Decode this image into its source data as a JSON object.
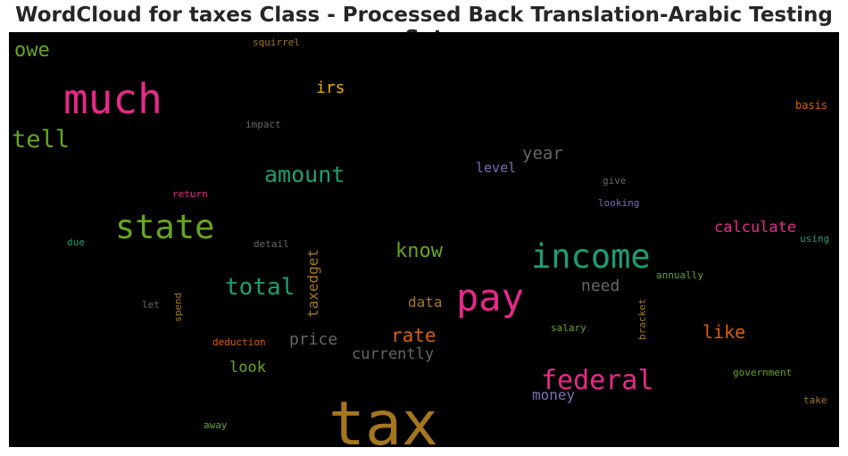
{
  "chart_data": {
    "type": "wordcloud",
    "title": "WordCloud for taxes Class - Processed Back Translation-Arabic Testing Set",
    "background": "#000000",
    "words": [
      {
        "text": "tax",
        "size": 68,
        "color": "#a6761d",
        "rotate": 0
      },
      {
        "text": "much",
        "size": 46,
        "color": "#e7298a",
        "rotate": 0
      },
      {
        "text": "pay",
        "size": 42,
        "color": "#e7298a",
        "rotate": 0
      },
      {
        "text": "income",
        "size": 37,
        "color": "#1b9e77",
        "rotate": 0
      },
      {
        "text": "state",
        "size": 37,
        "color": "#66a61e",
        "rotate": 0
      },
      {
        "text": "federal",
        "size": 30,
        "color": "#e7298a",
        "rotate": 0
      },
      {
        "text": "tell",
        "size": 27,
        "color": "#66a61e",
        "rotate": 0
      },
      {
        "text": "total",
        "size": 26,
        "color": "#1b9e77",
        "rotate": 0
      },
      {
        "text": "amount",
        "size": 25,
        "color": "#1b9e77",
        "rotate": 0
      },
      {
        "text": "owe",
        "size": 22,
        "color": "#66a61e",
        "rotate": 0
      },
      {
        "text": "know",
        "size": 22,
        "color": "#66a61e",
        "rotate": 0
      },
      {
        "text": "rate",
        "size": 21,
        "color": "#d95f02",
        "rotate": 0
      },
      {
        "text": "like",
        "size": 20,
        "color": "#d95f02",
        "rotate": 0
      },
      {
        "text": "year",
        "size": 19,
        "color": "#666666",
        "rotate": 0
      },
      {
        "text": "irs",
        "size": 18,
        "color": "#e6ab02",
        "rotate": 0
      },
      {
        "text": "need",
        "size": 18,
        "color": "#666666",
        "rotate": 0
      },
      {
        "text": "price",
        "size": 18,
        "color": "#666666",
        "rotate": 0
      },
      {
        "text": "calculate",
        "size": 17,
        "color": "#e7298a",
        "rotate": 0
      },
      {
        "text": "look",
        "size": 17,
        "color": "#66a61e",
        "rotate": 0
      },
      {
        "text": "currently",
        "size": 17,
        "color": "#666666",
        "rotate": 0
      },
      {
        "text": "taxedget",
        "size": 16,
        "color": "#a6761d",
        "rotate": -90
      },
      {
        "text": "data",
        "size": 16,
        "color": "#a6761d",
        "rotate": 0
      },
      {
        "text": "money",
        "size": 16,
        "color": "#7570b3",
        "rotate": 0
      },
      {
        "text": "level",
        "size": 15,
        "color": "#7570b3",
        "rotate": 0
      },
      {
        "text": "basis",
        "size": 12,
        "color": "#d95f02",
        "rotate": 0
      },
      {
        "text": "squirrel",
        "size": 11,
        "color": "#a6761d",
        "rotate": 0
      },
      {
        "text": "impact",
        "size": 11,
        "color": "#666666",
        "rotate": 0
      },
      {
        "text": "give",
        "size": 11,
        "color": "#666666",
        "rotate": 0
      },
      {
        "text": "return",
        "size": 11,
        "color": "#e7298a",
        "rotate": 0
      },
      {
        "text": "looking",
        "size": 11,
        "color": "#7570b3",
        "rotate": 0
      },
      {
        "text": "due",
        "size": 11,
        "color": "#1b9e77",
        "rotate": 0
      },
      {
        "text": "detail",
        "size": 11,
        "color": "#666666",
        "rotate": 0
      },
      {
        "text": "using",
        "size": 11,
        "color": "#1b9e77",
        "rotate": 0
      },
      {
        "text": "annually",
        "size": 11,
        "color": "#66a61e",
        "rotate": 0
      },
      {
        "text": "let",
        "size": 11,
        "color": "#666666",
        "rotate": 0
      },
      {
        "text": "spend",
        "size": 11,
        "color": "#a6761d",
        "rotate": -90
      },
      {
        "text": "salary",
        "size": 11,
        "color": "#66a61e",
        "rotate": 0
      },
      {
        "text": "bracket",
        "size": 11,
        "color": "#a6761d",
        "rotate": -90
      },
      {
        "text": "deduction",
        "size": 11,
        "color": "#d95f02",
        "rotate": 0
      },
      {
        "text": "government",
        "size": 11,
        "color": "#66a61e",
        "rotate": 0
      },
      {
        "text": "take",
        "size": 11,
        "color": "#a6761d",
        "rotate": 0
      },
      {
        "text": "away",
        "size": 11,
        "color": "#66a61e",
        "rotate": 0
      }
    ]
  }
}
